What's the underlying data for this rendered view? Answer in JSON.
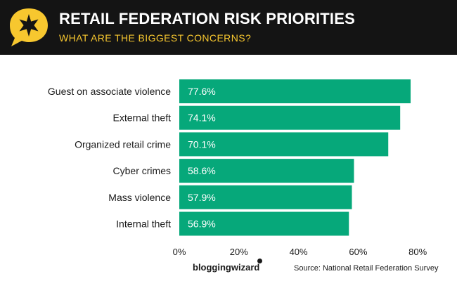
{
  "header": {
    "title": "RETAIL FEDERATION RISK PRIORITIES",
    "subtitle": "WHAT ARE THE BIGGEST CONCERNS?",
    "background": "#141414",
    "title_color": "#ffffff",
    "subtitle_color": "#f7c72f",
    "badge_icon": "star-speech-bubble-icon",
    "badge_color": "#f7c72f"
  },
  "chart_data": {
    "type": "bar",
    "orientation": "horizontal",
    "categories": [
      "Guest on associate violence",
      "External theft",
      "Organized retail crime",
      "Cyber crimes",
      "Mass violence",
      "Internal theft"
    ],
    "values": [
      77.6,
      74.1,
      70.1,
      58.6,
      57.9,
      56.9
    ],
    "value_labels": [
      "77.6%",
      "74.1%",
      "70.1%",
      "58.6%",
      "57.9%",
      "56.9%"
    ],
    "x_ticks": [
      0,
      20,
      40,
      60,
      80
    ],
    "x_tick_labels": [
      "0%",
      "20%",
      "40%",
      "60%",
      "80%"
    ],
    "xlim": [
      0,
      80
    ],
    "bar_color": "#06a87a",
    "grid": false,
    "legend": "none"
  },
  "footer": {
    "brand": "bloggingwizard",
    "source": "Source: National Retail Federation Survey"
  }
}
